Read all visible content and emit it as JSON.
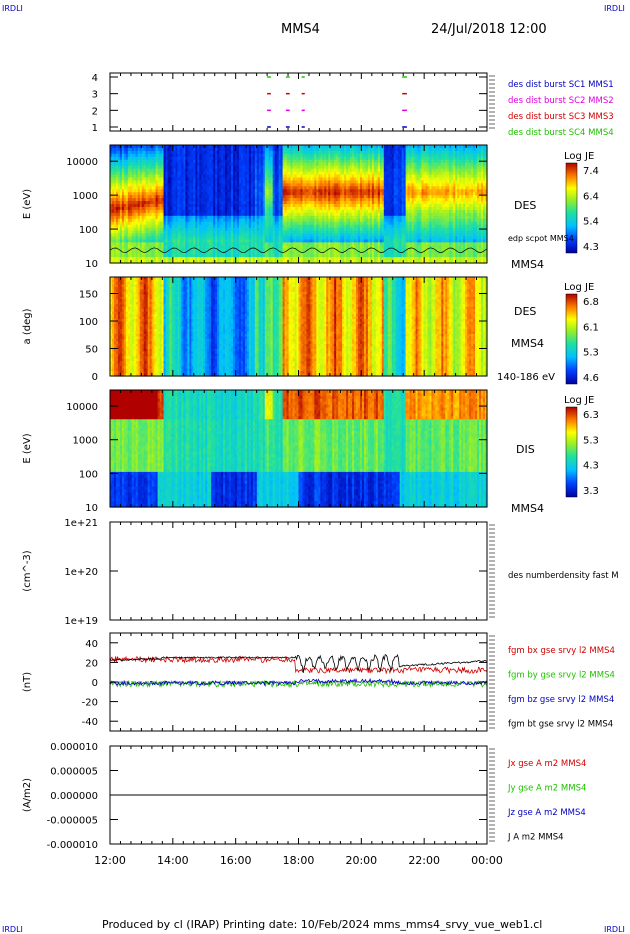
{
  "header": {
    "corner_tl": "IRDLI",
    "corner_tr": "IRDLI",
    "corner_bl": "IRDLI",
    "corner_br": "IRDLI",
    "spacecraft": "MMS4",
    "date": "24/Jul/2018 12:00"
  },
  "footer": {
    "text": "Produced by cl (IRAP)   Printing date: 10/Feb/2024   mms_mms4_srvy_vue_web1.cl"
  },
  "colors": {
    "red": "#d00000",
    "magenta": "#e000e0",
    "green": "#20c000",
    "blue": "#0000c0",
    "black": "#000000"
  },
  "chart_data": [
    {
      "type": "scatter",
      "panel": "burst",
      "ylim": [
        1,
        4
      ],
      "y_ticks": [
        "1",
        "2",
        "3",
        "4"
      ],
      "legend": [
        {
          "label": "des dist burst SC1 MMS1",
          "color": "#0000c0"
        },
        {
          "label": "des dist burst SC2 MMS2",
          "color": "#e000e0"
        },
        {
          "label": "des dist burst SC3 MMS3",
          "color": "#d00000"
        },
        {
          "label": "des dist burst SC4 MMS4",
          "color": "#20c000"
        }
      ],
      "burst_intervals_hours": [
        [
          17.0,
          17.12
        ],
        [
          17.6,
          17.72
        ],
        [
          18.1,
          18.2
        ],
        [
          21.3,
          21.45
        ]
      ]
    },
    {
      "type": "heatmap",
      "panel": "des_energy",
      "ylabel": "E (eV)",
      "y_scale": "log",
      "ylim": [
        10,
        30000
      ],
      "y_ticks": [
        "10",
        "100",
        "1000",
        "10000"
      ],
      "side_labels": [
        "DES",
        "edp scpot MMS4",
        "MMS4"
      ],
      "colorbar": {
        "title": "Log JE",
        "ticks": [
          "7.4",
          "6.4",
          "5.4",
          "4.3"
        ],
        "range": [
          4.3,
          7.4
        ]
      }
    },
    {
      "type": "heatmap",
      "panel": "des_pitch",
      "ylabel": "a (deg)",
      "ylim": [
        0,
        180
      ],
      "y_ticks": [
        "0",
        "50",
        "100",
        "150"
      ],
      "side_labels": [
        "DES",
        "MMS4",
        "140-186 eV"
      ],
      "colorbar": {
        "title": "Log JE",
        "ticks": [
          "6.8",
          "6.1",
          "5.3",
          "4.6"
        ],
        "range": [
          4.6,
          6.8
        ]
      }
    },
    {
      "type": "heatmap",
      "panel": "dis_energy",
      "ylabel": "E (eV)",
      "y_scale": "log",
      "ylim": [
        10,
        30000
      ],
      "y_ticks": [
        "10",
        "100",
        "1000",
        "10000"
      ],
      "side_labels": [
        "DIS",
        "MMS4"
      ],
      "colorbar": {
        "title": "Log JE",
        "ticks": [
          "6.3",
          "5.3",
          "4.3",
          "3.3"
        ],
        "range": [
          3.3,
          6.3
        ]
      }
    },
    {
      "type": "line",
      "panel": "density",
      "ylabel": "(cm^-3)",
      "y_scale": "log",
      "ylim": [
        1e+19,
        1e+21
      ],
      "y_ticks": [
        "1e+19",
        "1e+20",
        "1e+21"
      ],
      "legend": [
        {
          "label": "des numberdensity fast M",
          "color": "#000000"
        }
      ]
    },
    {
      "type": "line",
      "panel": "magnetic_field",
      "ylabel": "(nT)",
      "ylim": [
        -50,
        50
      ],
      "y_ticks": [
        "-40",
        "-20",
        "0",
        "20",
        "40"
      ],
      "legend": [
        {
          "label": "fgm bx gse srvy l2 MMS4",
          "color": "#d00000"
        },
        {
          "label": "fgm by gse srvy l2 MMS4",
          "color": "#20c000"
        },
        {
          "label": "fgm bz gse srvy l2 MMS4",
          "color": "#0000c0"
        },
        {
          "label": "fgm bt gse srvy l2 MMS4",
          "color": "#000000"
        }
      ]
    },
    {
      "type": "line",
      "panel": "current",
      "ylabel": "(A/m2)",
      "ylim": [
        -1e-05,
        1e-05
      ],
      "y_ticks": [
        "-0.000010",
        "-0.000005",
        "0.000000",
        "0.000005",
        "0.000010"
      ],
      "legend": [
        {
          "label": "Jx gse A m2 MMS4",
          "color": "#d00000"
        },
        {
          "label": "Jy gse A m2 MMS4",
          "color": "#20c000"
        },
        {
          "label": "Jz gse A m2 MMS4",
          "color": "#0000c0"
        },
        {
          "label": "J A m2 MMS4",
          "color": "#000000"
        }
      ]
    }
  ],
  "x_axis": {
    "ticks": [
      "12:00",
      "14:00",
      "16:00",
      "18:00",
      "20:00",
      "22:00",
      "00:00"
    ],
    "range_hours": [
      12,
      24
    ]
  }
}
